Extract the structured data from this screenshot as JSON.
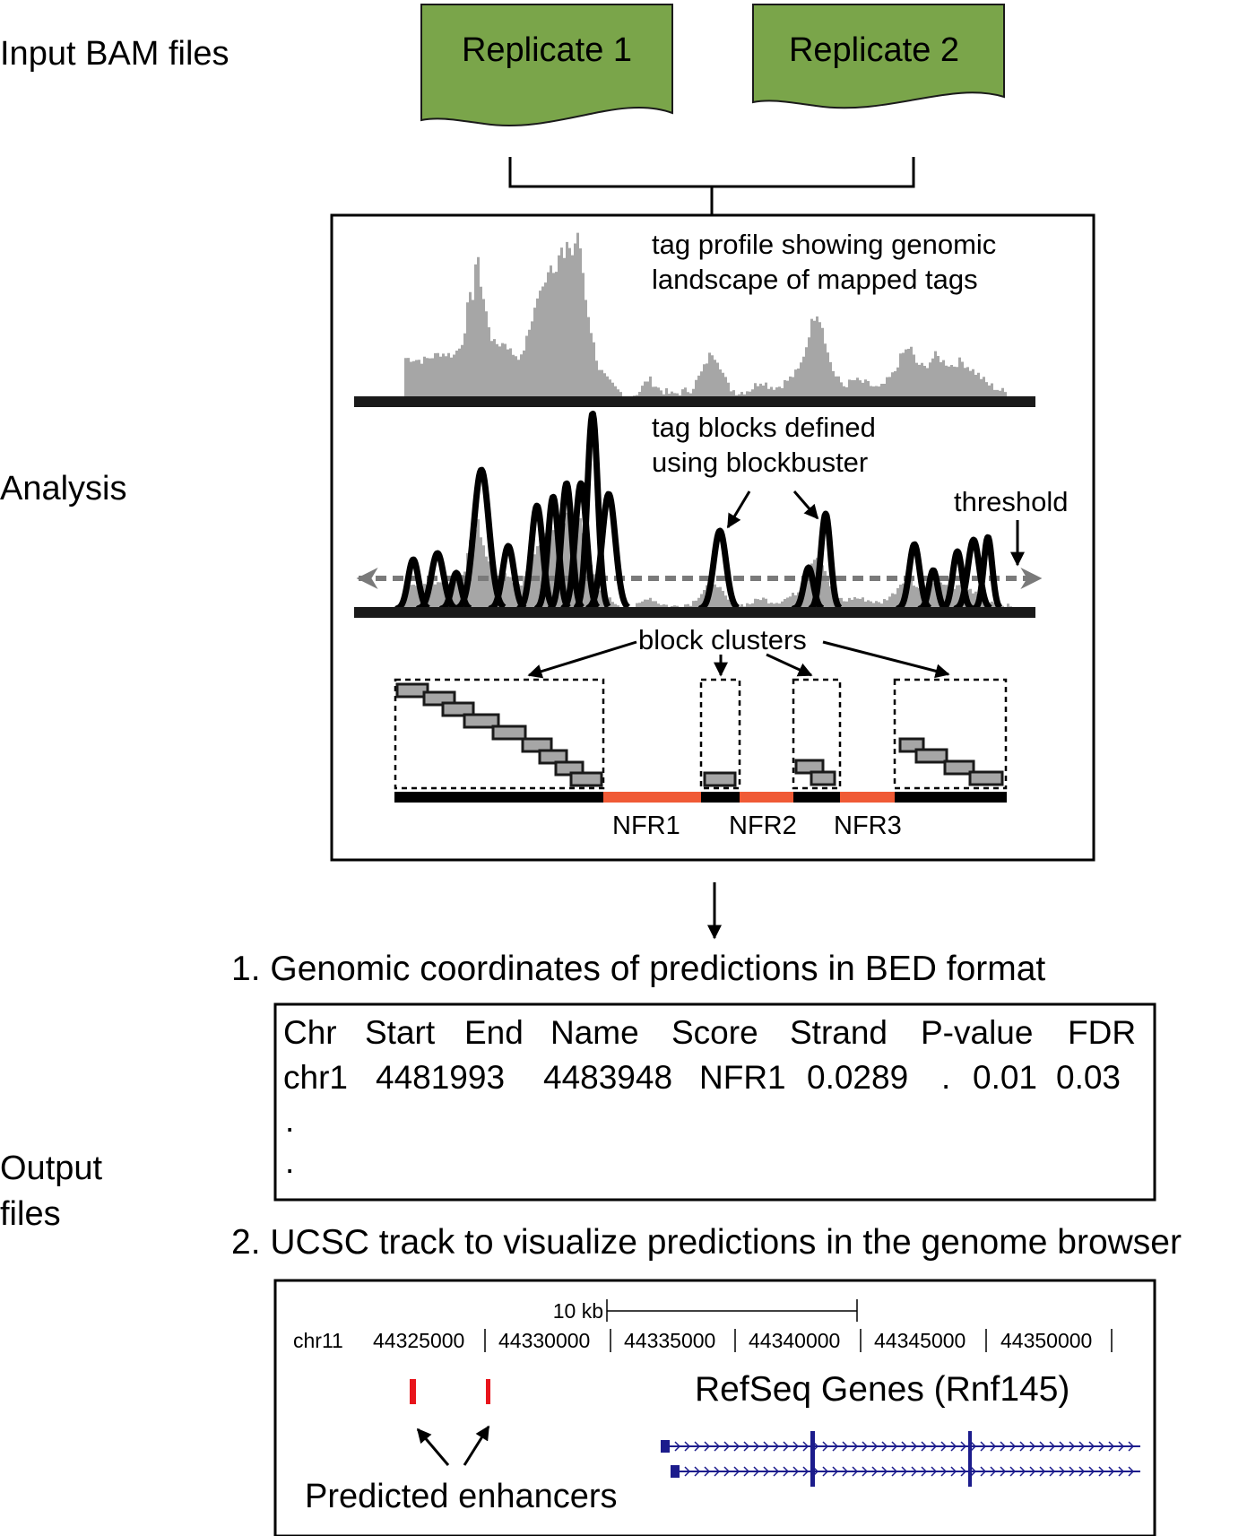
{
  "sections": {
    "input": "Input BAM files",
    "analysis": "Analysis",
    "output": [
      "Output",
      "files"
    ]
  },
  "inputs": [
    "Replicate 1",
    "Replicate 2"
  ],
  "analysis_panel": {
    "profile_label": [
      "tag profile showing genomic",
      "landscape of mapped tags"
    ],
    "blocks_label": [
      "tag blocks defined",
      "using blockbuster"
    ],
    "threshold_label": "threshold",
    "clusters_label": "block clusters",
    "nfr_labels": [
      "NFR1",
      "NFR2",
      "NFR3"
    ]
  },
  "output1": {
    "heading": "1. Genomic coordinates of predictions in BED format",
    "columns": [
      "Chr",
      "Start",
      "End",
      "Name",
      "Score",
      "Strand",
      "P-value",
      "FDR"
    ],
    "row": [
      "chr1",
      "4481993",
      "4483948",
      "NFR1",
      "0.0289",
      ".",
      "0.01",
      "0.03"
    ],
    "continuation": [
      ".",
      "."
    ]
  },
  "output2": {
    "heading": "2. UCSC track to visualize predictions in the genome browser",
    "scale_label": "10 kb",
    "chrom": "chr11",
    "positions": [
      "44325000",
      "44330000",
      "44335000",
      "44340000",
      "44345000",
      "44350000"
    ],
    "gene_label": "RefSeq Genes (Rnf145)",
    "enhancer_label": "Predicted enhancers"
  },
  "colors": {
    "replicate_fill": "#7aa54a",
    "profile_gray": "#a6a6a6",
    "nfr_red": "#f05a35",
    "enhancer_red": "#e8141b",
    "gene_navy": "#1c1c8c"
  }
}
